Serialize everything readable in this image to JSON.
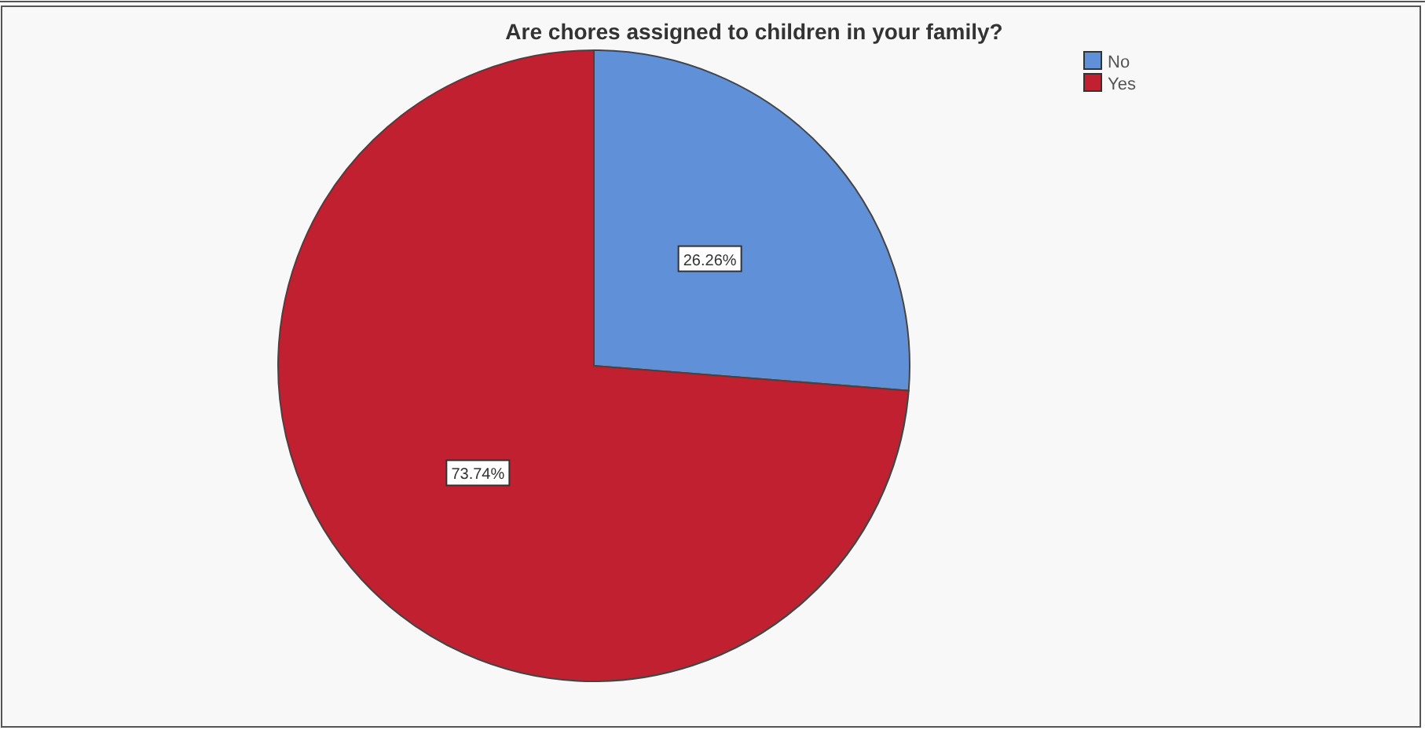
{
  "chart_data": {
    "type": "pie",
    "title": "Are chores assigned to children in your family?",
    "categories": [
      "No",
      "Yes"
    ],
    "values": [
      26.26,
      73.74
    ],
    "colors": [
      "#6090d8",
      "#c02030"
    ],
    "value_labels": [
      "26.26%",
      "73.74%"
    ],
    "legend": "top right"
  }
}
